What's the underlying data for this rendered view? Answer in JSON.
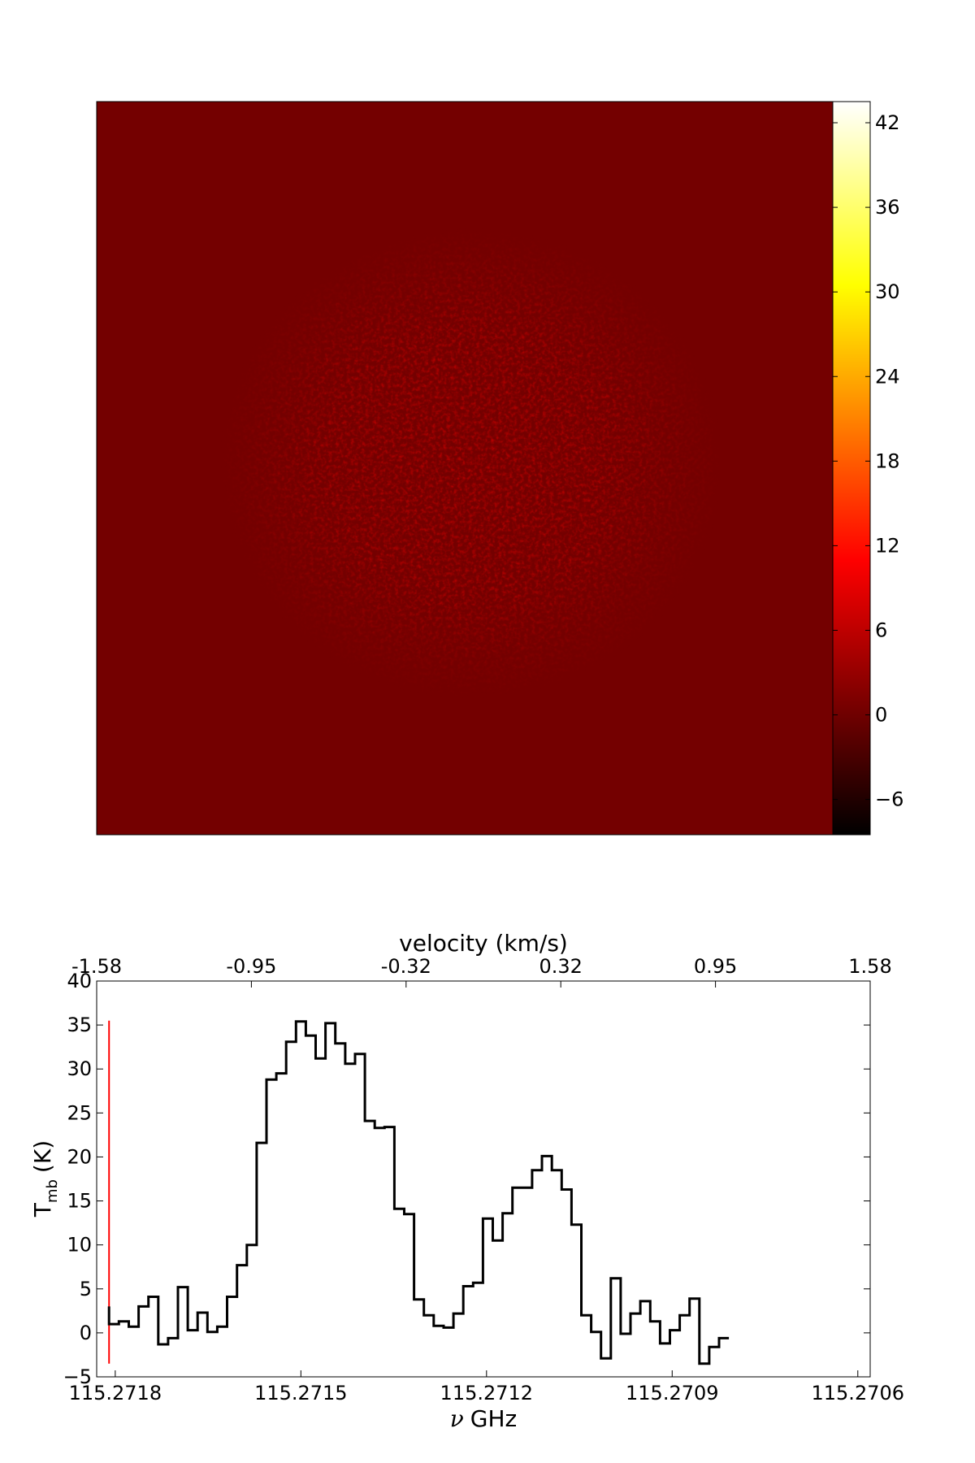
{
  "chart_data": [
    {
      "type": "heatmap",
      "colormap": "hot",
      "background_color": "#740000",
      "colorbar": {
        "vmin": -8.5,
        "vmax": 43.5,
        "ticks": [
          -6,
          0,
          6,
          12,
          18,
          24,
          30,
          36,
          42
        ],
        "tick_labels": [
          "−6",
          "0",
          "6",
          "12",
          "18",
          "24",
          "30",
          "36",
          "42"
        ]
      }
    },
    {
      "type": "line",
      "style": "steps",
      "xlabel_prefix": "ν",
      "xlabel_suffix": "GHz",
      "ylabel_main": "T",
      "ylabel_sub": "mb",
      "ylabel_suffix": "(K)",
      "top_xlabel": "velocity (km/s)",
      "xlim": [
        115.27183,
        115.27058
      ],
      "ylim": [
        -5,
        40
      ],
      "x_ticks": [
        115.2718,
        115.2715,
        115.2712,
        115.2709,
        115.2706
      ],
      "x_tick_labels": [
        "115.2718",
        "115.2715",
        "115.2712",
        "115.2709",
        "115.2706"
      ],
      "y_ticks": [
        -5,
        0,
        5,
        10,
        15,
        20,
        25,
        30,
        35,
        40
      ],
      "y_tick_labels": [
        "−5",
        "0",
        "5",
        "10",
        "15",
        "20",
        "25",
        "30",
        "35",
        "40"
      ],
      "top_ticks": [
        -1.58,
        -0.95,
        -0.32,
        0.32,
        0.95,
        1.58
      ],
      "top_tick_labels": [
        "-1.58",
        "-0.95",
        "-0.32",
        "0.32",
        "0.95",
        "1.58"
      ],
      "vline": {
        "x": 115.27181,
        "y": [
          -3.5,
          35.5
        ],
        "color": "#ff0000"
      },
      "series": [
        {
          "color": "#000000",
          "x_start": 115.27181,
          "x_step": -1.59e-05,
          "values": [
            1.0,
            1.3,
            0.7,
            3.0,
            4.1,
            -1.3,
            -0.6,
            5.2,
            0.3,
            2.3,
            0.1,
            0.7,
            4.1,
            7.7,
            10.0,
            21.6,
            28.8,
            29.5,
            33.1,
            35.4,
            33.8,
            31.2,
            35.2,
            32.9,
            30.6,
            31.7,
            24.1,
            23.3,
            23.4,
            14.1,
            13.5,
            3.8,
            2.0,
            0.8,
            0.6,
            2.2,
            5.3,
            5.7,
            13.0,
            10.5,
            13.6,
            16.5,
            16.5,
            18.5,
            20.1,
            18.5,
            16.3,
            12.3,
            2.0,
            0.1,
            -2.9,
            6.2,
            -0.1,
            2.2,
            3.6,
            1.3,
            -1.2,
            0.3,
            2.0,
            3.9,
            -3.5,
            -1.6,
            -0.6
          ]
        }
      ]
    }
  ]
}
